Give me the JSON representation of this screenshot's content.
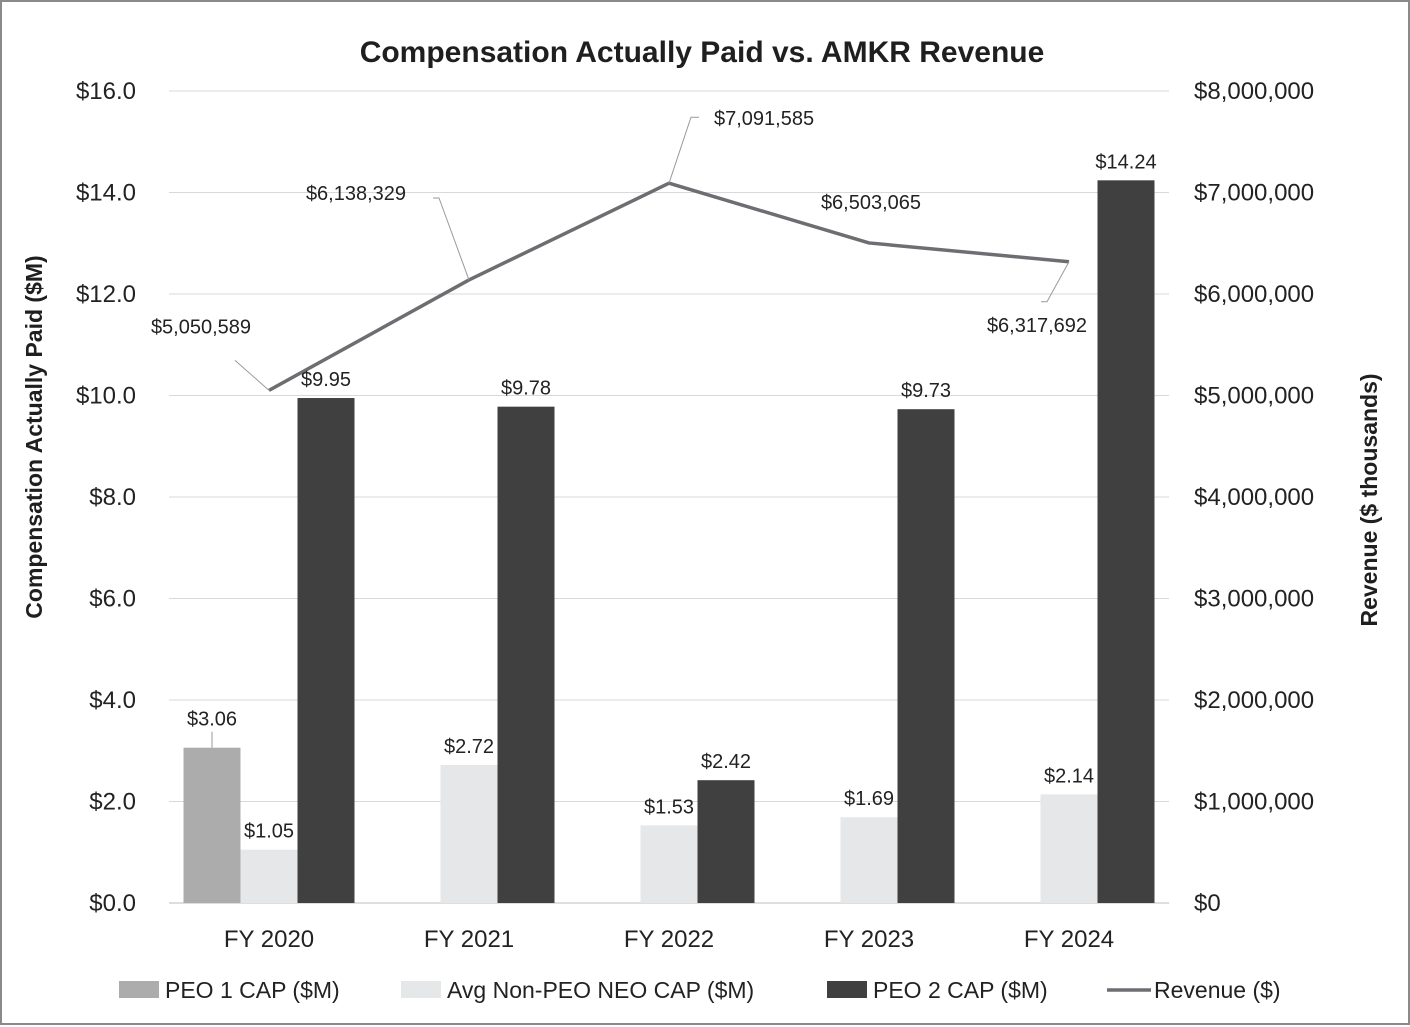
{
  "chart_data": {
    "type": "bar",
    "title": "Compensation Actually Paid vs. AMKR Revenue",
    "categories": [
      "FY 2020",
      "FY 2021",
      "FY 2022",
      "FY 2023",
      "FY 2024"
    ],
    "ylabel": "Compensation Actually Paid ($M)",
    "y2label": "Revenue ($ thousands)",
    "ylim": [
      0,
      16
    ],
    "y2lim": [
      0,
      8000000
    ],
    "yticks": [
      "$0.0",
      "$2.0",
      "$4.0",
      "$6.0",
      "$8.0",
      "$10.0",
      "$12.0",
      "$14.0",
      "$16.0"
    ],
    "y2ticks": [
      "$0",
      "$1,000,000",
      "$2,000,000",
      "$3,000,000",
      "$4,000,000",
      "$5,000,000",
      "$6,000,000",
      "$7,000,000",
      "$8,000,000"
    ],
    "grid": true,
    "legend_position": "bottom",
    "series": [
      {
        "name": "PEO 1 CAP ($M)",
        "color": "#acacac",
        "axis": "left",
        "values": [
          3.06,
          null,
          null,
          null,
          null
        ],
        "labels": [
          "$3.06",
          "",
          "",
          "",
          ""
        ]
      },
      {
        "name": "Avg Non-PEO NEO CAP ($M)",
        "color": "#e6e7e8",
        "axis": "left",
        "values": [
          1.05,
          2.72,
          1.53,
          1.69,
          2.14
        ],
        "labels": [
          "$1.05",
          "$2.72",
          "$1.53",
          "$1.69",
          "$2.14"
        ]
      },
      {
        "name": "PEO 2 CAP ($M)",
        "color": "#404041",
        "axis": "left",
        "values": [
          9.95,
          9.78,
          2.42,
          9.73,
          14.24
        ],
        "labels": [
          "$9.95",
          "$9.78",
          "$2.42",
          "$9.73",
          "$14.24"
        ]
      }
    ],
    "line_series": {
      "name": "Revenue ($)",
      "color": "#6d6e71",
      "axis": "right",
      "values": [
        5050589,
        6138329,
        7091585,
        6503065,
        6317692
      ],
      "labels": [
        "$5,050,589",
        "$6,138,329",
        "$7,091,585",
        "$6,503,065",
        "$6,317,692"
      ]
    }
  }
}
